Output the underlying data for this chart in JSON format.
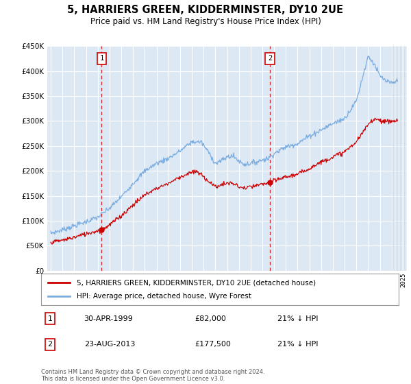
{
  "title": "5, HARRIERS GREEN, KIDDERMINSTER, DY10 2UE",
  "subtitle": "Price paid vs. HM Land Registry's House Price Index (HPI)",
  "legend_label_red": "5, HARRIERS GREEN, KIDDERMINSTER, DY10 2UE (detached house)",
  "legend_label_blue": "HPI: Average price, detached house, Wyre Forest",
  "annotation1_label": "1",
  "annotation1_date": "30-APR-1999",
  "annotation1_price": "£82,000",
  "annotation1_hpi": "21% ↓ HPI",
  "annotation2_label": "2",
  "annotation2_date": "23-AUG-2013",
  "annotation2_price": "£177,500",
  "annotation2_hpi": "21% ↓ HPI",
  "footnote": "Contains HM Land Registry data © Crown copyright and database right 2024.\nThis data is licensed under the Open Government Licence v3.0.",
  "ylim_max": 450000,
  "yticks": [
    0,
    50000,
    100000,
    150000,
    200000,
    250000,
    300000,
    350000,
    400000,
    450000
  ],
  "background_color": "#dde8f5",
  "red_color": "#cc0000",
  "blue_color": "#7aace0",
  "marker1_x_year": 1999.33,
  "marker1_y": 82000,
  "marker2_x_year": 2013.65,
  "marker2_y": 177500,
  "future_start": 2024.0,
  "xmin": 1994.7,
  "xmax": 2025.3
}
